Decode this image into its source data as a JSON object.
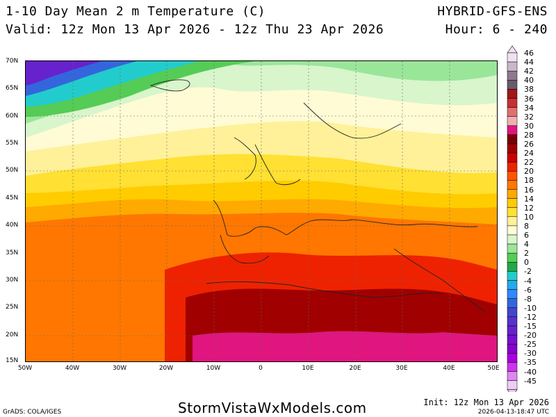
{
  "header": {
    "title": "1-10 Day Mean 2 m Temperature (C)",
    "valid": "Valid: 12z Mon 13 Apr 2026 - 12z Thu 23 Apr 2026",
    "model": "HYBRID-GFS-ENS",
    "hours": "Hour: 6 - 240"
  },
  "axes": {
    "lat_labels": [
      "70N",
      "65N",
      "60N",
      "55N",
      "50N",
      "45N",
      "40N",
      "35N",
      "30N",
      "25N",
      "20N",
      "15N"
    ],
    "lon_labels": [
      "50W",
      "40W",
      "30W",
      "20W",
      "10W",
      "0",
      "10E",
      "20E",
      "30E",
      "40E",
      "50E"
    ]
  },
  "legend": {
    "labels": [
      "46",
      "44",
      "42",
      "40",
      "38",
      "36",
      "34",
      "32",
      "30",
      "28",
      "26",
      "24",
      "22",
      "20",
      "18",
      "16",
      "14",
      "12",
      "10",
      "8",
      "6",
      "4",
      "2",
      "0",
      "-2",
      "-4",
      "-6",
      "-8",
      "-10",
      "-12",
      "-15",
      "-20",
      "-25",
      "-30",
      "-35",
      "-40",
      "-45"
    ],
    "colors": [
      "#f0e0f0",
      "#c8b8c8",
      "#907890",
      "#6a5a6a",
      "#a01818",
      "#c83030",
      "#e07070",
      "#f0b0b0",
      "#e0157f",
      "#7a0000",
      "#a00000",
      "#cc0000",
      "#ee2200",
      "#ff5500",
      "#ff7700",
      "#ffaa00",
      "#ffcc00",
      "#ffe033",
      "#fff199",
      "#fffbd5",
      "#d8f5cc",
      "#99e699",
      "#55cc55",
      "#22aa44",
      "#22cccc",
      "#22aaee",
      "#3388ff",
      "#3366dd",
      "#4444cc",
      "#5533cc",
      "#6622cc",
      "#7711cc",
      "#8800cc",
      "#aa00dd",
      "#cc33ee",
      "#dd88ee",
      "#eeccf5"
    ]
  },
  "footer": {
    "brand": "StormVistaWxModels.com",
    "grads": "GrADS: COLA/IGES",
    "init": "Init: 12z Mon 13 Apr 2026",
    "timestamp": "2026-04-13-18:47 UTC"
  }
}
